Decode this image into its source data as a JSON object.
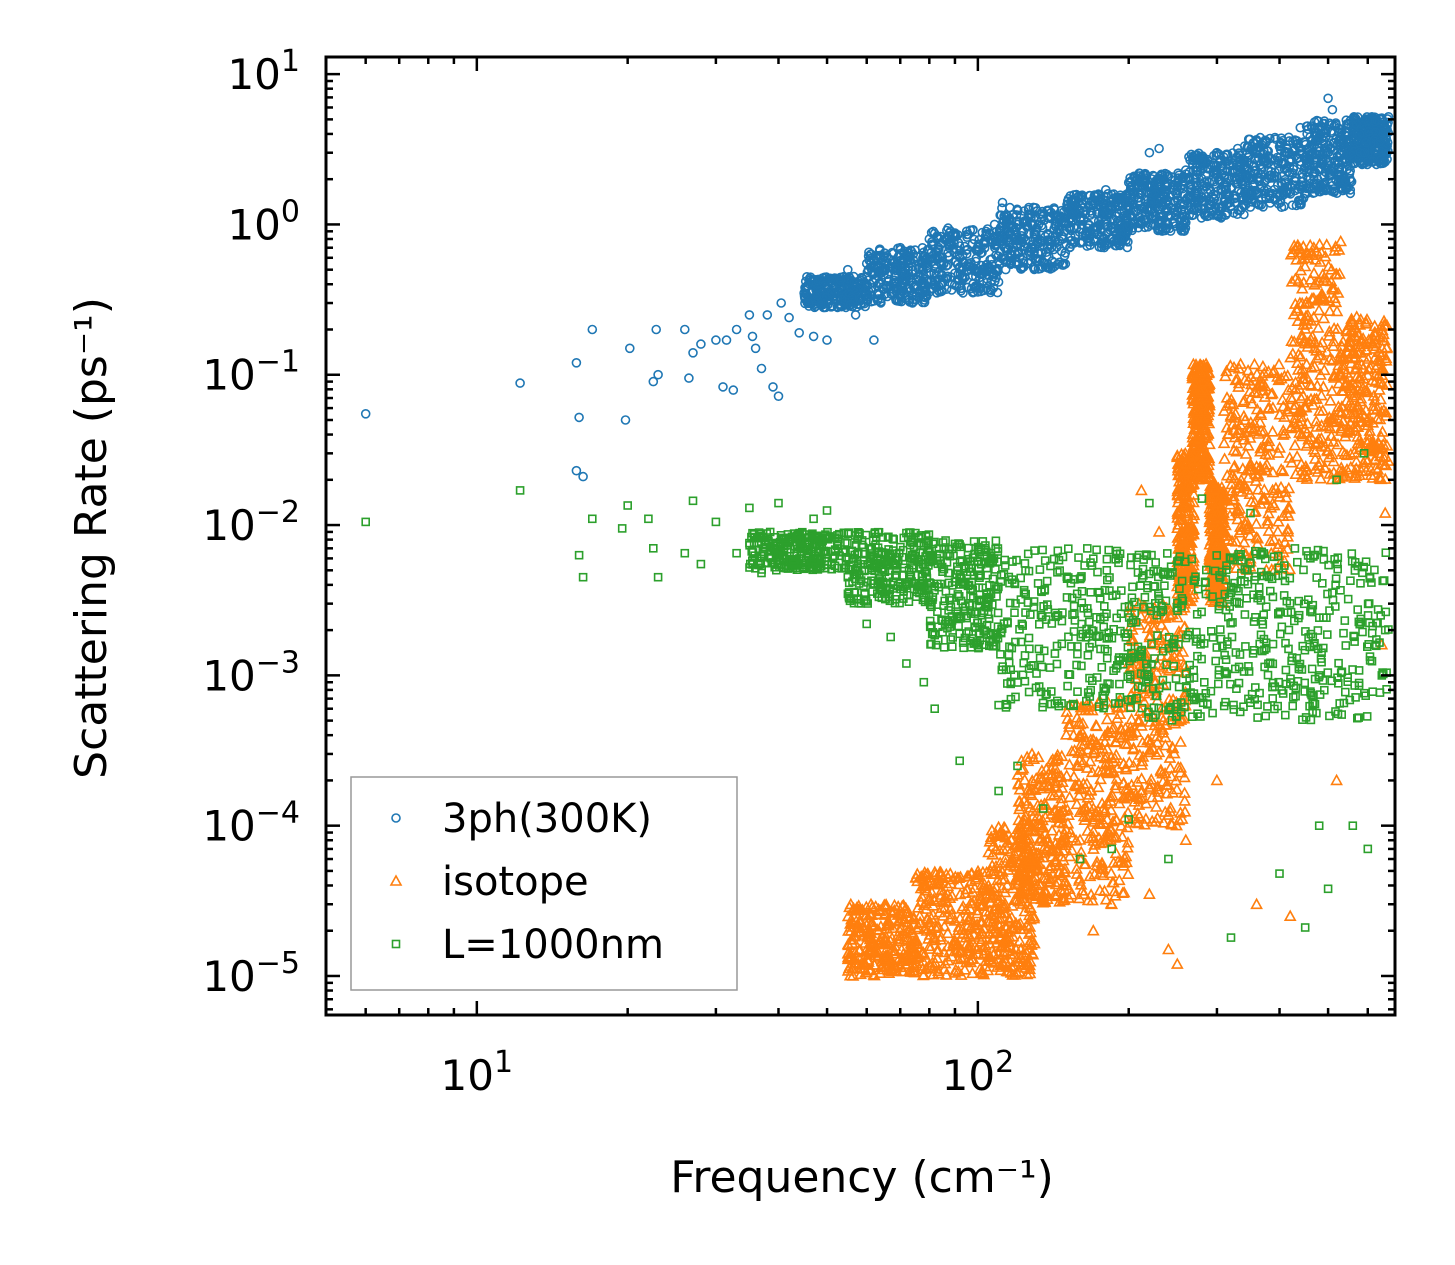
{
  "chart_data": {
    "type": "scatter",
    "title": "",
    "xlabel": "Frequency (cm⁻¹)",
    "ylabel": "Scattering Rate (ps⁻¹)",
    "xscale": "log",
    "yscale": "log",
    "xlim": [
      5,
      680
    ],
    "ylim": [
      5.5e-06,
      13
    ],
    "xticks": [
      {
        "value": 10,
        "base": "10",
        "exp": "1"
      },
      {
        "value": 100,
        "base": "10",
        "exp": "2"
      }
    ],
    "yticks": [
      {
        "value": 10,
        "base": "10",
        "exp": "1"
      },
      {
        "value": 1,
        "base": "10",
        "exp": "0"
      },
      {
        "value": 0.1,
        "base": "10",
        "exp": "−1"
      },
      {
        "value": 0.01,
        "base": "10",
        "exp": "−2"
      },
      {
        "value": 0.001,
        "base": "10",
        "exp": "−3"
      },
      {
        "value": 0.0001,
        "base": "10",
        "exp": "−4"
      },
      {
        "value": 1e-05,
        "base": "10",
        "exp": "−5"
      }
    ],
    "legend_position": "lower-left",
    "series": [
      {
        "name": "3ph(300K)",
        "marker": "circle",
        "color": "#1f77b4",
        "points": [
          [
            6,
            0.055
          ],
          [
            12.2,
            0.088
          ],
          [
            15.8,
            0.12
          ],
          [
            16,
            0.052
          ],
          [
            15.8,
            0.023
          ],
          [
            16.3,
            0.021
          ],
          [
            17,
            0.2
          ],
          [
            19.8,
            0.05
          ],
          [
            20.2,
            0.15
          ],
          [
            22.5,
            0.09
          ],
          [
            22.8,
            0.2
          ],
          [
            23,
            0.1
          ],
          [
            26,
            0.2
          ],
          [
            26.5,
            0.095
          ],
          [
            27,
            0.14
          ],
          [
            28,
            0.16
          ],
          [
            30,
            0.17
          ],
          [
            31,
            0.083
          ],
          [
            31.5,
            0.17
          ],
          [
            32.5,
            0.079
          ],
          [
            33,
            0.2
          ],
          [
            35,
            0.25
          ],
          [
            35.5,
            0.18
          ],
          [
            36,
            0.15
          ],
          [
            37,
            0.11
          ],
          [
            38,
            0.25
          ],
          [
            39,
            0.083
          ],
          [
            40,
            0.072
          ],
          [
            40.5,
            0.3
          ],
          [
            42,
            0.24
          ],
          [
            44,
            0.19
          ],
          [
            45,
            0.35
          ],
          [
            47,
            0.18
          ],
          [
            48,
            0.42
          ],
          [
            50,
            0.17
          ],
          [
            52,
            0.32
          ],
          [
            55,
            0.5
          ],
          [
            57,
            0.25
          ],
          [
            60,
            0.55
          ],
          [
            62,
            0.17
          ],
          [
            65,
            0.6
          ],
          [
            70,
            0.7
          ],
          [
            80,
            0.8
          ],
          [
            95,
            0.9
          ],
          [
            108,
            1.0
          ],
          [
            112,
            1.4
          ],
          [
            113,
            0.7
          ],
          [
            120,
            1.05
          ],
          [
            140,
            1.2
          ],
          [
            160,
            1.5
          ],
          [
            180,
            1.7
          ],
          [
            200,
            1.9
          ],
          [
            220,
            3.0
          ],
          [
            230,
            3.2
          ],
          [
            240,
            2.1
          ],
          [
            260,
            2.3
          ],
          [
            280,
            2.6
          ],
          [
            300,
            3.0
          ],
          [
            330,
            3.2
          ],
          [
            370,
            3.5
          ],
          [
            400,
            3.3
          ],
          [
            440,
            4.4
          ],
          [
            470,
            4.8
          ],
          [
            500,
            6.9
          ],
          [
            510,
            5.8
          ],
          [
            550,
            4.6
          ],
          [
            600,
            4.9
          ],
          [
            640,
            5.1
          ],
          [
            660,
            5.2
          ]
        ],
        "bands": [
          {
            "x_from": 45,
            "x_to": 60,
            "y_low": 0.28,
            "y_high": 0.45
          },
          {
            "x_from": 60,
            "x_to": 80,
            "y_low": 0.3,
            "y_high": 0.7
          },
          {
            "x_from": 80,
            "x_to": 110,
            "y_low": 0.35,
            "y_high": 0.95
          },
          {
            "x_from": 110,
            "x_to": 150,
            "y_low": 0.5,
            "y_high": 1.3
          },
          {
            "x_from": 150,
            "x_to": 200,
            "y_low": 0.7,
            "y_high": 1.6
          },
          {
            "x_from": 200,
            "x_to": 260,
            "y_low": 0.9,
            "y_high": 2.2
          },
          {
            "x_from": 260,
            "x_to": 340,
            "y_low": 1.1,
            "y_high": 3.0
          },
          {
            "x_from": 340,
            "x_to": 450,
            "y_low": 1.3,
            "y_high": 3.8
          },
          {
            "x_from": 450,
            "x_to": 560,
            "y_low": 1.6,
            "y_high": 5.0
          },
          {
            "x_from": 560,
            "x_to": 660,
            "y_low": 2.5,
            "y_high": 5.2
          }
        ]
      },
      {
        "name": "isotope",
        "marker": "triangle",
        "color": "#ff7f0e",
        "points": [
          [
            200,
            0.0004
          ],
          [
            210,
            0.00015
          ],
          [
            220,
            3.5e-05
          ],
          [
            240,
            1.5e-05
          ],
          [
            250,
            1.2e-05
          ],
          [
            260,
            8e-05
          ],
          [
            300,
            0.0002
          ],
          [
            360,
            3e-05
          ],
          [
            420,
            2.5e-05
          ],
          [
            520,
            0.0002
          ],
          [
            640,
            0.0016
          ],
          [
            650,
            0.012
          ],
          [
            630,
            0.03
          ],
          [
            600,
            0.05
          ],
          [
            560,
            0.06
          ],
          [
            212,
            0.017
          ],
          [
            230,
            0.009
          ],
          [
            170,
            2e-05
          ],
          [
            185,
            3e-05
          ],
          [
            150,
            4e-05
          ]
        ],
        "bands": [
          {
            "x_from": 55,
            "x_to": 75,
            "y_low": 1e-05,
            "y_high": 3e-05
          },
          {
            "x_from": 75,
            "x_to": 105,
            "y_low": 1e-05,
            "y_high": 5e-05
          },
          {
            "x_from": 105,
            "x_to": 130,
            "y_low": 1e-05,
            "y_high": 0.0001
          },
          {
            "x_from": 120,
            "x_to": 150,
            "y_low": 3e-05,
            "y_high": 0.0003
          },
          {
            "x_from": 150,
            "x_to": 200,
            "y_low": 3e-05,
            "y_high": 0.0007
          },
          {
            "x_from": 200,
            "x_to": 260,
            "y_low": 0.0001,
            "y_high": 0.003
          },
          {
            "x_from": 250,
            "x_to": 270,
            "y_low": 0.003,
            "y_high": 0.03
          },
          {
            "x_from": 268,
            "x_to": 290,
            "y_low": 0.02,
            "y_high": 0.12
          },
          {
            "x_from": 290,
            "x_to": 310,
            "y_low": 0.003,
            "y_high": 0.02
          },
          {
            "x_from": 310,
            "x_to": 420,
            "y_low": 0.005,
            "y_high": 0.12
          },
          {
            "x_from": 420,
            "x_to": 530,
            "y_low": 0.02,
            "y_high": 0.8
          },
          {
            "x_from": 530,
            "x_to": 660,
            "y_low": 0.02,
            "y_high": 0.25
          }
        ]
      },
      {
        "name": "L=1000nm",
        "marker": "square",
        "color": "#2ca02c",
        "points": [
          [
            6,
            0.0105
          ],
          [
            12.2,
            0.017
          ],
          [
            16,
            0.0063
          ],
          [
            16.3,
            0.0045
          ],
          [
            17,
            0.011
          ],
          [
            19.5,
            0.0095
          ],
          [
            20,
            0.0135
          ],
          [
            22,
            0.011
          ],
          [
            22.5,
            0.007
          ],
          [
            23,
            0.0045
          ],
          [
            26,
            0.0065
          ],
          [
            27,
            0.0145
          ],
          [
            28,
            0.0055
          ],
          [
            30,
            0.0105
          ],
          [
            33,
            0.0065
          ],
          [
            35,
            0.013
          ],
          [
            37,
            0.0048
          ],
          [
            40,
            0.014
          ],
          [
            43,
            0.0065
          ],
          [
            47,
            0.011
          ],
          [
            50,
            0.0125
          ],
          [
            55,
            0.0045
          ],
          [
            60,
            0.0022
          ],
          [
            63,
            0.0035
          ],
          [
            67,
            0.0018
          ],
          [
            72,
            0.0012
          ],
          [
            78,
            0.0009
          ],
          [
            82,
            0.0006
          ],
          [
            92,
            0.00027
          ],
          [
            110,
            0.00017
          ],
          [
            120,
            0.00025
          ],
          [
            135,
            0.00013
          ],
          [
            160,
            6e-05
          ],
          [
            185,
            7e-05
          ],
          [
            200,
            0.00011
          ],
          [
            240,
            6e-05
          ],
          [
            280,
            0.015
          ],
          [
            320,
            1.8e-05
          ],
          [
            400,
            4.8e-05
          ],
          [
            450,
            2.1e-05
          ],
          [
            500,
            3.8e-05
          ],
          [
            560,
            0.0001
          ],
          [
            600,
            7e-05
          ],
          [
            480,
            0.0001
          ],
          [
            640,
            0.001
          ],
          [
            650,
            0.002
          ],
          [
            220,
            0.014
          ],
          [
            350,
            0.012
          ],
          [
            520,
            0.02
          ],
          [
            590,
            0.03
          ]
        ],
        "bands": [
          {
            "x_from": 35,
            "x_to": 55,
            "y_low": 0.005,
            "y_high": 0.009
          },
          {
            "x_from": 55,
            "x_to": 80,
            "y_low": 0.003,
            "y_high": 0.009
          },
          {
            "x_from": 80,
            "x_to": 110,
            "y_low": 0.0015,
            "y_high": 0.008
          },
          {
            "x_from": 110,
            "x_to": 200,
            "y_low": 0.0006,
            "y_high": 0.007
          },
          {
            "x_from": 200,
            "x_to": 350,
            "y_low": 0.0005,
            "y_high": 0.0065
          },
          {
            "x_from": 350,
            "x_to": 660,
            "y_low": 0.0005,
            "y_high": 0.007
          }
        ]
      }
    ]
  }
}
